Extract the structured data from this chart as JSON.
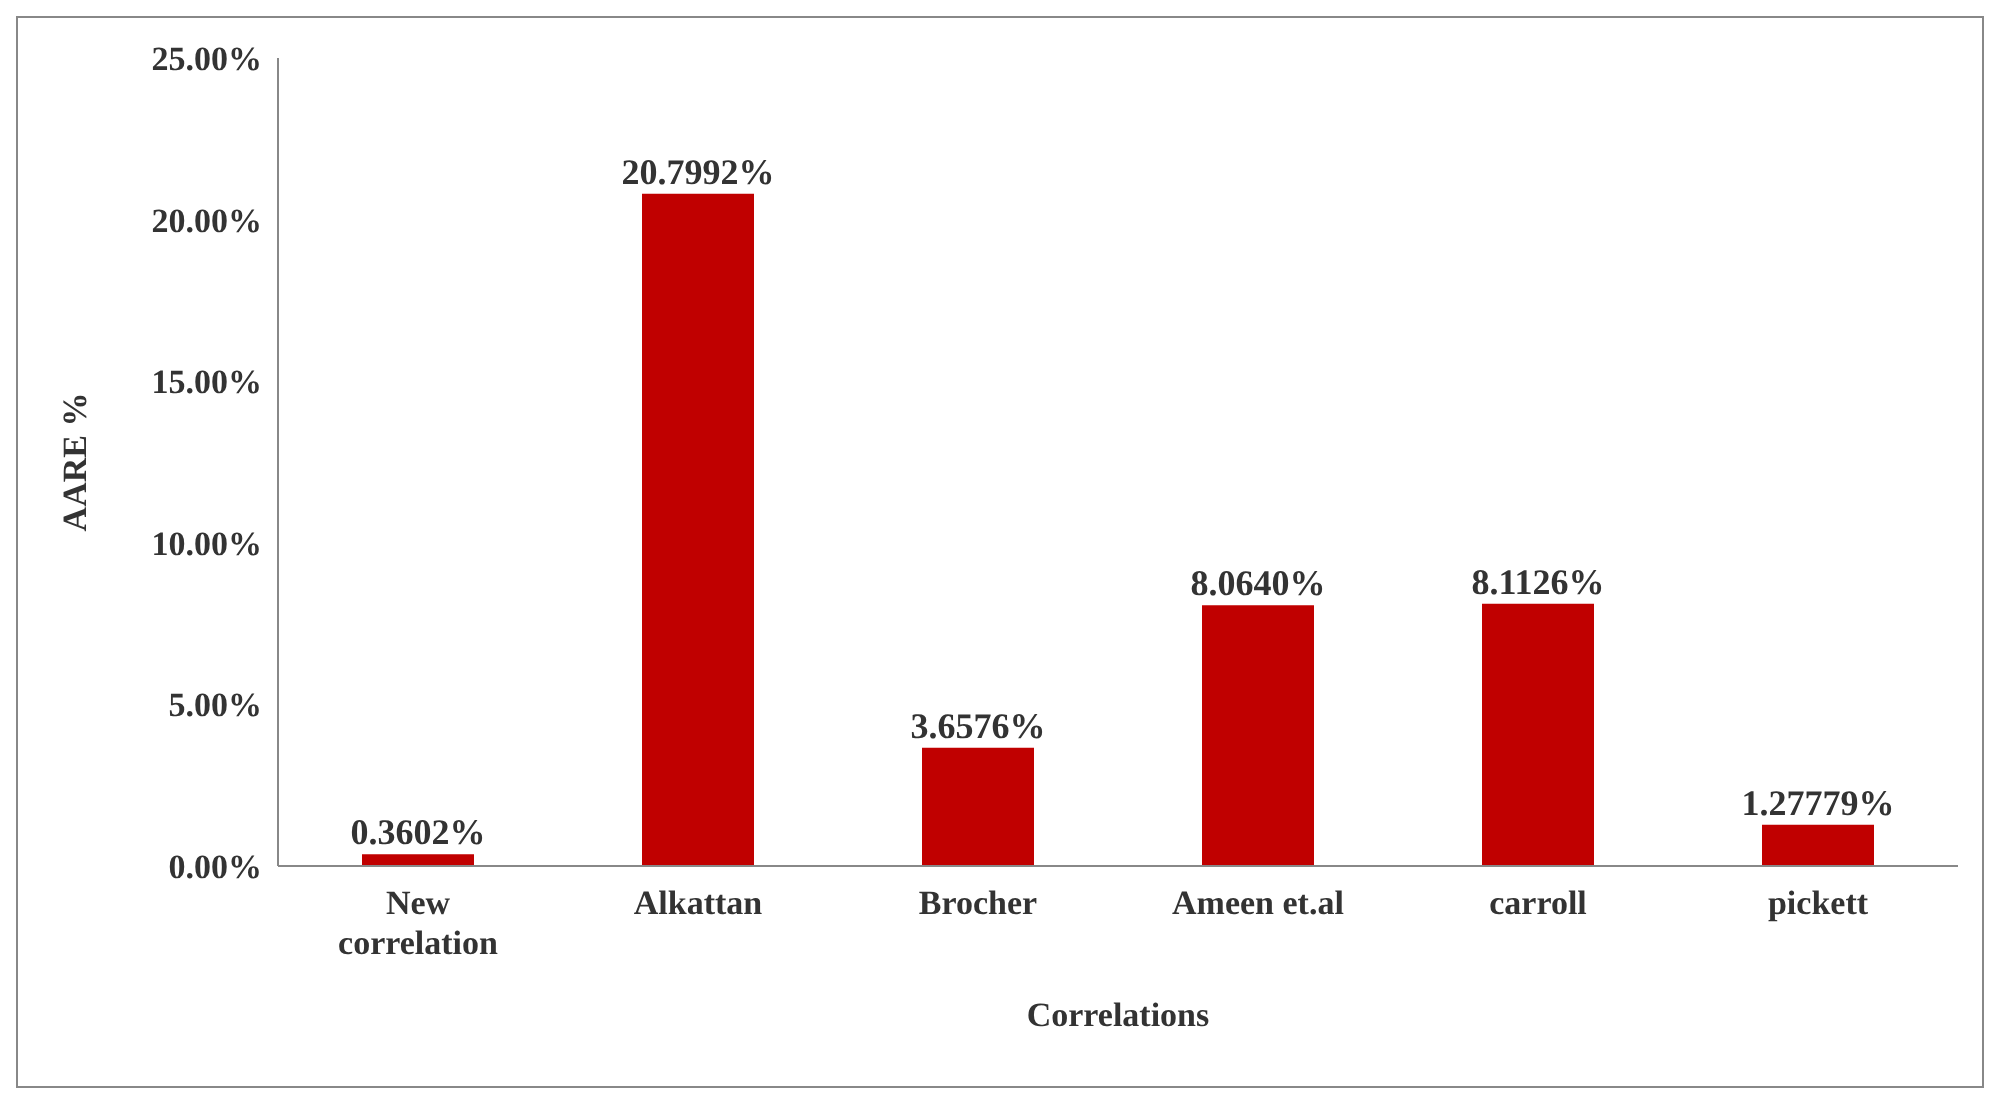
{
  "chart_data": {
    "type": "bar",
    "xlabel": "Correlations",
    "ylabel": "AARE %",
    "categories": [
      "New correlation",
      "Alkattan",
      "Brocher",
      "Ameen et.al",
      "carroll",
      "pickett"
    ],
    "values": [
      0.3602,
      20.7992,
      3.6576,
      8.064,
      8.1126,
      1.27779
    ],
    "value_labels": [
      "0.3602%",
      "20.7992%",
      "3.6576%",
      "8.0640%",
      "8.1126%",
      "1.27779%"
    ],
    "color": "#c00000",
    "ylim": [
      0,
      25
    ],
    "yticks": [
      {
        "value": 0,
        "label": "0.00%"
      },
      {
        "value": 5,
        "label": "5.00%"
      },
      {
        "value": 10,
        "label": "10.00%"
      },
      {
        "value": 15,
        "label": "15.00%"
      },
      {
        "value": 20,
        "label": "20.00%"
      },
      {
        "value": 25,
        "label": "25.00%"
      }
    ],
    "grid": false
  }
}
